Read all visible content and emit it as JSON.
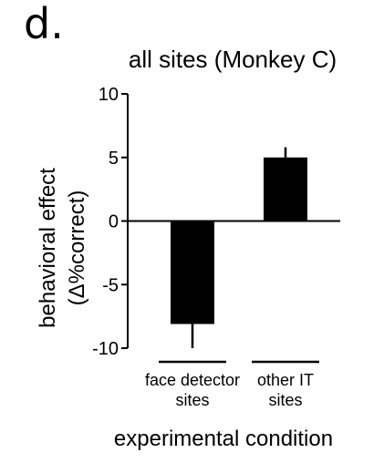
{
  "panel_label": "d.",
  "chart_data": {
    "type": "bar",
    "title": "all sites (Monkey C)",
    "ylabel_line1": "behavioral effect",
    "ylabel_line2": "(Δ%correct)",
    "xlabel": "experimental condition",
    "ylim": [
      -10,
      10
    ],
    "yticks": [
      "10",
      "5",
      "0",
      "-5",
      "-10"
    ],
    "categories": [
      {
        "line1": "face detector",
        "line2": "sites"
      },
      {
        "line1": "other IT",
        "line2": "sites"
      }
    ],
    "values": [
      -8.1,
      5.0
    ],
    "errors": [
      1.9,
      0.8
    ],
    "bar_color": "#000000",
    "grid": false
  }
}
